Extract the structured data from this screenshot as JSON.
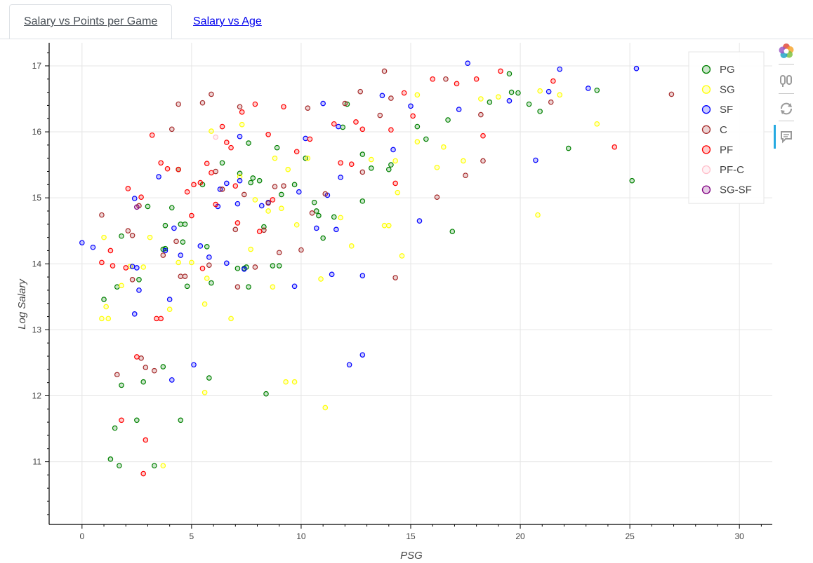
{
  "tabs": [
    {
      "label": "Salary vs Points per Game",
      "active": true
    },
    {
      "label": "Salary vs Age",
      "active": false
    }
  ],
  "toolbar": {
    "tools": [
      "bokeh-logo-icon",
      "pan-icon",
      "reset-icon",
      "hover-icon"
    ]
  },
  "chart_data": {
    "type": "scatter",
    "xlabel": "PSG",
    "ylabel": "Log Salary",
    "xlim": [
      -1.5,
      31.5
    ],
    "ylim": [
      10.05,
      17.35
    ],
    "xticks": [
      0,
      5,
      10,
      15,
      20,
      25,
      30
    ],
    "yticks": [
      11,
      12,
      13,
      14,
      15,
      16,
      17
    ],
    "grid": true,
    "legend_position": "top-right",
    "series": [
      {
        "name": "PG",
        "color": "#008000",
        "points": [
          [
            1,
            13.46
          ],
          [
            1.3,
            11.04
          ],
          [
            1.5,
            11.51
          ],
          [
            1.6,
            13.65
          ],
          [
            1.7,
            10.94
          ],
          [
            1.8,
            12.16
          ],
          [
            1.8,
            14.42
          ],
          [
            2.5,
            11.63
          ],
          [
            2.6,
            13.76
          ],
          [
            2.8,
            12.21
          ],
          [
            3,
            14.87
          ],
          [
            3.3,
            10.94
          ],
          [
            3.7,
            12.44
          ],
          [
            3.7,
            14.22
          ],
          [
            3.8,
            14.23
          ],
          [
            3.8,
            14.58
          ],
          [
            4.1,
            14.85
          ],
          [
            4.4,
            15.43
          ],
          [
            4.5,
            14.6
          ],
          [
            4.5,
            11.63
          ],
          [
            4.6,
            14.33
          ],
          [
            4.7,
            14.6
          ],
          [
            4.8,
            13.66
          ],
          [
            5.5,
            15.2
          ],
          [
            5.7,
            14.26
          ],
          [
            5.8,
            12.27
          ],
          [
            5.9,
            13.71
          ],
          [
            6.4,
            15.53
          ],
          [
            7.1,
            13.93
          ],
          [
            7.2,
            15.37
          ],
          [
            7.4,
            13.93
          ],
          [
            7.5,
            13.95
          ],
          [
            7.6,
            15.83
          ],
          [
            7.6,
            13.65
          ],
          [
            7.7,
            15.23
          ],
          [
            7.8,
            15.3
          ],
          [
            8.1,
            15.26
          ],
          [
            8.3,
            14.56
          ],
          [
            8.4,
            12.03
          ],
          [
            8.7,
            13.97
          ],
          [
            8.9,
            15.76
          ],
          [
            9,
            13.97
          ],
          [
            9.1,
            15.05
          ],
          [
            9.7,
            15.2
          ],
          [
            10.2,
            15.6
          ],
          [
            10.6,
            14.93
          ],
          [
            10.7,
            14.8
          ],
          [
            10.8,
            14.73
          ],
          [
            11,
            14.39
          ],
          [
            11.5,
            14.71
          ],
          [
            11.9,
            16.07
          ],
          [
            12.1,
            16.42
          ],
          [
            12.8,
            15.66
          ],
          [
            12.8,
            14.95
          ],
          [
            13.2,
            15.45
          ],
          [
            14,
            15.43
          ],
          [
            14.1,
            15.5
          ],
          [
            15.3,
            16.08
          ],
          [
            15.7,
            15.89
          ],
          [
            16.7,
            16.18
          ],
          [
            16.9,
            14.49
          ],
          [
            18.6,
            16.45
          ],
          [
            19.5,
            16.88
          ],
          [
            19.6,
            16.6
          ],
          [
            19.9,
            16.59
          ],
          [
            20.4,
            16.42
          ],
          [
            20.9,
            16.31
          ],
          [
            22.2,
            15.75
          ],
          [
            23.5,
            16.63
          ],
          [
            25.1,
            15.26
          ]
        ]
      },
      {
        "name": "SG",
        "color": "#ffff00",
        "points": [
          [
            0.9,
            13.17
          ],
          [
            1,
            14.4
          ],
          [
            1.1,
            13.35
          ],
          [
            1.2,
            13.17
          ],
          [
            1.8,
            13.67
          ],
          [
            2.2,
            13.96
          ],
          [
            2.8,
            13.95
          ],
          [
            3.1,
            14.4
          ],
          [
            3.7,
            10.94
          ],
          [
            4,
            13.31
          ],
          [
            4.4,
            14.02
          ],
          [
            5,
            14.02
          ],
          [
            5.6,
            13.39
          ],
          [
            5.6,
            12.05
          ],
          [
            5.7,
            13.78
          ],
          [
            5.9,
            16.01
          ],
          [
            6.8,
            13.17
          ],
          [
            7.2,
            15.32
          ],
          [
            7.3,
            16.11
          ],
          [
            7.7,
            14.22
          ],
          [
            7.9,
            14.97
          ],
          [
            8.5,
            14.8
          ],
          [
            8.7,
            13.65
          ],
          [
            8.8,
            15.6
          ],
          [
            9.1,
            14.84
          ],
          [
            9.3,
            12.21
          ],
          [
            9.4,
            15.43
          ],
          [
            9.7,
            12.21
          ],
          [
            9.8,
            14.59
          ],
          [
            10.3,
            15.6
          ],
          [
            10.9,
            13.77
          ],
          [
            11.1,
            11.82
          ],
          [
            11.8,
            14.7
          ],
          [
            12.3,
            14.27
          ],
          [
            13.2,
            15.58
          ],
          [
            13.8,
            14.58
          ],
          [
            14,
            14.58
          ],
          [
            14.3,
            15.56
          ],
          [
            14.4,
            15.08
          ],
          [
            14.6,
            14.12
          ],
          [
            15.3,
            16.56
          ],
          [
            15.3,
            15.85
          ],
          [
            16.2,
            15.46
          ],
          [
            16.5,
            15.77
          ],
          [
            17.4,
            15.56
          ],
          [
            18.2,
            16.5
          ],
          [
            19,
            16.53
          ],
          [
            20.9,
            16.62
          ],
          [
            20.8,
            14.74
          ],
          [
            21.8,
            16.56
          ],
          [
            23.5,
            16.12
          ]
        ]
      },
      {
        "name": "SF",
        "color": "#0000ff",
        "points": [
          [
            0,
            14.32
          ],
          [
            0.5,
            14.25
          ],
          [
            2.3,
            13.96
          ],
          [
            2.4,
            14.99
          ],
          [
            2.4,
            13.24
          ],
          [
            2.5,
            13.94
          ],
          [
            2.6,
            13.6
          ],
          [
            3.5,
            15.32
          ],
          [
            3.8,
            14.2
          ],
          [
            4,
            13.46
          ],
          [
            4.1,
            12.24
          ],
          [
            4.2,
            14.54
          ],
          [
            4.5,
            14.13
          ],
          [
            5.1,
            12.47
          ],
          [
            5.4,
            14.27
          ],
          [
            5.8,
            14.1
          ],
          [
            6.2,
            14.87
          ],
          [
            6.3,
            15.13
          ],
          [
            6.6,
            15.22
          ],
          [
            6.6,
            14.01
          ],
          [
            7.1,
            14.91
          ],
          [
            7.2,
            15.93
          ],
          [
            7.2,
            15.26
          ],
          [
            7.4,
            13.92
          ],
          [
            8.2,
            14.88
          ],
          [
            8.5,
            14.93
          ],
          [
            9.7,
            13.66
          ],
          [
            9.9,
            15.09
          ],
          [
            10.2,
            15.9
          ],
          [
            10.7,
            14.54
          ],
          [
            11,
            16.43
          ],
          [
            11.2,
            15.04
          ],
          [
            11.4,
            13.84
          ],
          [
            11.6,
            14.52
          ],
          [
            11.7,
            16.08
          ],
          [
            11.8,
            15.31
          ],
          [
            12.2,
            12.47
          ],
          [
            12.8,
            13.82
          ],
          [
            12.8,
            12.62
          ],
          [
            13.7,
            16.55
          ],
          [
            14.2,
            15.73
          ],
          [
            15,
            16.39
          ],
          [
            15.4,
            14.65
          ],
          [
            17.2,
            16.34
          ],
          [
            17.6,
            17.04
          ],
          [
            19.5,
            16.47
          ],
          [
            20.7,
            15.57
          ],
          [
            21.3,
            16.61
          ],
          [
            21.8,
            16.95
          ],
          [
            23.1,
            16.66
          ],
          [
            25.3,
            16.96
          ]
        ]
      },
      {
        "name": "C",
        "color": "#a52a2a",
        "points": [
          [
            0.9,
            14.74
          ],
          [
            1.6,
            12.32
          ],
          [
            2.1,
            14.5
          ],
          [
            2.3,
            14.43
          ],
          [
            2.3,
            13.76
          ],
          [
            2.6,
            14.88
          ],
          [
            2.7,
            12.57
          ],
          [
            2.9,
            12.43
          ],
          [
            3.3,
            12.38
          ],
          [
            3.7,
            14.13
          ],
          [
            4.1,
            16.04
          ],
          [
            4.3,
            14.34
          ],
          [
            4.4,
            16.42
          ],
          [
            4.5,
            13.81
          ],
          [
            4.7,
            13.81
          ],
          [
            5.5,
            16.44
          ],
          [
            5.8,
            13.98
          ],
          [
            5.9,
            16.57
          ],
          [
            6.1,
            15.4
          ],
          [
            6.4,
            15.13
          ],
          [
            7,
            14.52
          ],
          [
            7.1,
            13.65
          ],
          [
            7.2,
            16.38
          ],
          [
            7.4,
            15.05
          ],
          [
            7.9,
            13.95
          ],
          [
            8.3,
            14.51
          ],
          [
            8.5,
            14.92
          ],
          [
            8.8,
            15.17
          ],
          [
            9,
            14.17
          ],
          [
            9.2,
            15.18
          ],
          [
            10,
            14.21
          ],
          [
            10.3,
            16.36
          ],
          [
            10.5,
            14.77
          ],
          [
            11.1,
            15.06
          ],
          [
            12,
            16.43
          ],
          [
            12.7,
            16.61
          ],
          [
            12.8,
            15.39
          ],
          [
            13.6,
            16.25
          ],
          [
            13.8,
            16.92
          ],
          [
            14.1,
            16.51
          ],
          [
            14.3,
            13.79
          ],
          [
            16.2,
            15.01
          ],
          [
            16.6,
            16.8
          ],
          [
            17.5,
            15.34
          ],
          [
            18.2,
            16.26
          ],
          [
            18.3,
            15.56
          ],
          [
            21.4,
            16.45
          ],
          [
            26.9,
            16.57
          ]
        ]
      },
      {
        "name": "PF",
        "color": "#ff0000",
        "points": [
          [
            0.9,
            14.02
          ],
          [
            1.3,
            14.2
          ],
          [
            1.4,
            13.97
          ],
          [
            1.8,
            11.63
          ],
          [
            2,
            13.94
          ],
          [
            2.1,
            15.14
          ],
          [
            2.5,
            12.59
          ],
          [
            2.7,
            15.01
          ],
          [
            2.8,
            10.82
          ],
          [
            2.9,
            11.33
          ],
          [
            3.2,
            15.95
          ],
          [
            3.4,
            13.17
          ],
          [
            3.6,
            13.17
          ],
          [
            3.6,
            15.53
          ],
          [
            3.9,
            15.44
          ],
          [
            4.4,
            15.43
          ],
          [
            4.8,
            15.09
          ],
          [
            5,
            14.73
          ],
          [
            5.1,
            15.2
          ],
          [
            5.4,
            15.23
          ],
          [
            5.5,
            13.93
          ],
          [
            5.7,
            15.52
          ],
          [
            5.9,
            15.38
          ],
          [
            6.1,
            14.9
          ],
          [
            6.4,
            16.08
          ],
          [
            6.6,
            15.84
          ],
          [
            6.8,
            15.76
          ],
          [
            7,
            15.18
          ],
          [
            7.1,
            14.62
          ],
          [
            7.3,
            16.3
          ],
          [
            7.9,
            16.42
          ],
          [
            8.1,
            14.49
          ],
          [
            8.5,
            15.96
          ],
          [
            8.7,
            14.97
          ],
          [
            9.2,
            16.38
          ],
          [
            9.8,
            15.7
          ],
          [
            10.4,
            15.89
          ],
          [
            11.5,
            16.12
          ],
          [
            11.8,
            15.53
          ],
          [
            12.3,
            15.51
          ],
          [
            12.5,
            16.15
          ],
          [
            12.8,
            16.04
          ],
          [
            14.1,
            16.03
          ],
          [
            14.3,
            15.22
          ],
          [
            14.7,
            16.59
          ],
          [
            15.1,
            16.24
          ],
          [
            16,
            16.8
          ],
          [
            17.1,
            16.73
          ],
          [
            18,
            16.8
          ],
          [
            18.3,
            15.94
          ],
          [
            19.1,
            16.92
          ],
          [
            21.5,
            16.77
          ],
          [
            24.3,
            15.77
          ]
        ]
      },
      {
        "name": "PF-C",
        "color": "#ffc0cb",
        "points": [
          [
            6.1,
            15.92
          ]
        ]
      },
      {
        "name": "SG-SF",
        "color": "#800080",
        "points": [
          [
            2.5,
            14.86
          ]
        ]
      }
    ]
  }
}
